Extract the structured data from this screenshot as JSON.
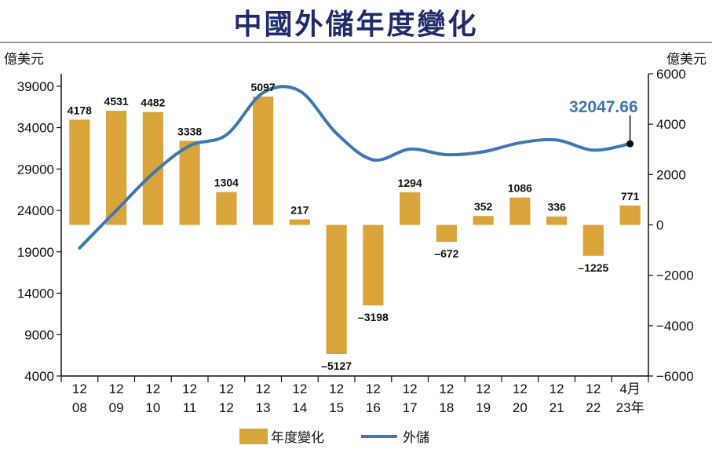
{
  "title": "中國外儲年度變化",
  "chart_data": {
    "type": "bar+line",
    "left_axis": {
      "label": "億美元",
      "ticks": [
        4000,
        9000,
        14000,
        19000,
        24000,
        29000,
        34000,
        39000
      ],
      "ylim": [
        4000,
        40500
      ]
    },
    "right_axis": {
      "label": "億美元",
      "ticks": [
        "6000",
        "4000",
        "2000",
        "0",
        "−2000",
        "−4000",
        "−6000"
      ],
      "values": [
        6000,
        4000,
        2000,
        0,
        -2000,
        -4000,
        -6000
      ],
      "ylim": [
        -6000,
        6000
      ]
    },
    "categories": [
      [
        "12",
        "08"
      ],
      [
        "12",
        "09"
      ],
      [
        "12",
        "10"
      ],
      [
        "12",
        "11"
      ],
      [
        "12",
        "12"
      ],
      [
        "12",
        "13"
      ],
      [
        "12",
        "14"
      ],
      [
        "12",
        "15"
      ],
      [
        "12",
        "16"
      ],
      [
        "12",
        "17"
      ],
      [
        "12",
        "18"
      ],
      [
        "12",
        "19"
      ],
      [
        "12",
        "20"
      ],
      [
        "12",
        "21"
      ],
      [
        "12",
        "22"
      ],
      [
        "4月",
        "23年"
      ]
    ],
    "series": [
      {
        "name": "年度變化",
        "axis": "right",
        "kind": "bar",
        "color": "#d9a43a",
        "values": [
          4178,
          4531,
          4482,
          3338,
          1304,
          5097,
          217,
          -5127,
          -3198,
          1294,
          -672,
          352,
          1086,
          336,
          -1225,
          771
        ],
        "labels": [
          "4178",
          "4531",
          "4482",
          "3338",
          "1304",
          "5097",
          "217",
          "–5127",
          "–3198",
          "1294",
          "–672",
          "352",
          "1086",
          "336",
          "–1225",
          "771"
        ]
      },
      {
        "name": "外儲",
        "axis": "left",
        "kind": "line",
        "color": "#3e78b2",
        "values": [
          19460,
          23992,
          28473,
          31812,
          33116,
          38213,
          38430,
          33304,
          30105,
          31399,
          30727,
          31079,
          32165,
          32502,
          31277,
          32048
        ]
      }
    ],
    "end_label": "32047.66",
    "legend": [
      "年度變化",
      "外儲"
    ]
  }
}
